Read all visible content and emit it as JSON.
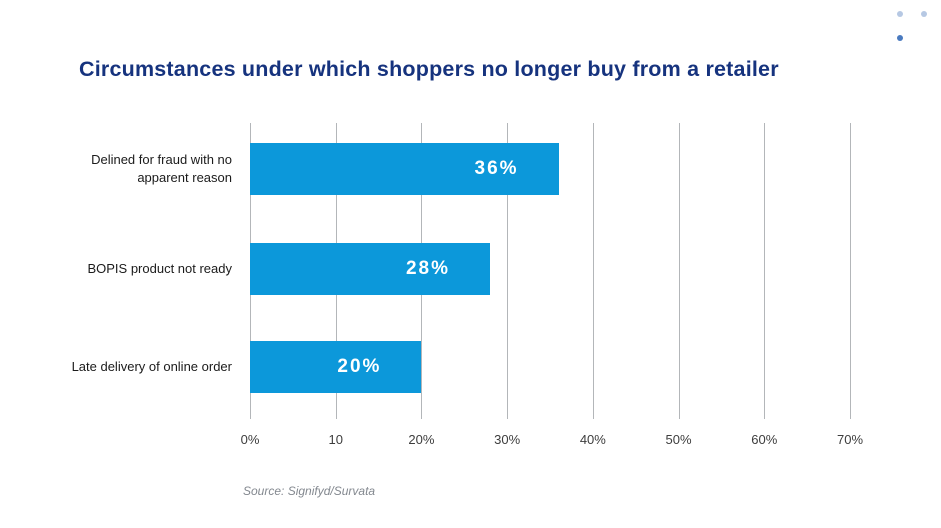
{
  "colors": {
    "bar_fill": "#0c98da",
    "title_text": "#16337e",
    "gridline": "#b3b6b9",
    "category_text": "#1b1b1b",
    "tick_text": "#3d3d3d",
    "value_text": "#ffffff",
    "source_text": "#83888f",
    "dot_light": "#b6c8e3",
    "dot_dark": "#4a7abf",
    "background": "#ffffff"
  },
  "chart_data": {
    "type": "bar",
    "orientation": "horizontal",
    "title": "Circumstances under which shoppers no longer buy from a retailer",
    "categories": [
      "Delined for fraud with no apparent reason",
      "BOPIS product not ready",
      "Late delivery of online order"
    ],
    "values": [
      36,
      28,
      20
    ],
    "value_labels": [
      "36%",
      "28%",
      "20%"
    ],
    "x_ticks": [
      "0%",
      "10",
      "20%",
      "30%",
      "40%",
      "50%",
      "60%",
      "70%"
    ],
    "xlim": [
      0,
      70
    ],
    "xlabel": "",
    "ylabel": "",
    "grid": "vertical gridlines only",
    "legend": "none",
    "value_label_position": "inside-bar-right",
    "source": "Source: Signifyd/Survata"
  }
}
